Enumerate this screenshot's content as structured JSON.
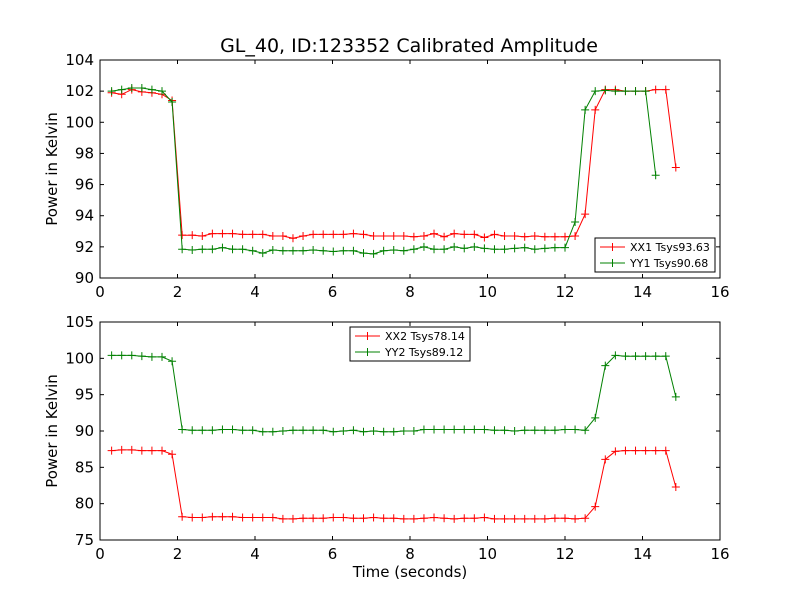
{
  "figure": {
    "title": "GL_40, ID:123352 Calibrated Amplitude"
  },
  "chart_data": [
    {
      "type": "line",
      "title": "GL_40, ID:123352 Calibrated Amplitude",
      "xlabel": "",
      "ylabel": "Power in Kelvin",
      "xlim": [
        0,
        16
      ],
      "ylim": [
        90,
        104
      ],
      "xticks": [
        0,
        2,
        4,
        6,
        8,
        10,
        12,
        14,
        16
      ],
      "yticks": [
        90,
        92,
        94,
        96,
        98,
        100,
        102,
        104
      ],
      "legend": "bottom-right",
      "grid": false,
      "x": [
        0.3,
        0.56,
        0.82,
        1.08,
        1.34,
        1.6,
        1.86,
        2.12,
        2.38,
        2.64,
        2.9,
        3.16,
        3.42,
        3.68,
        3.94,
        4.2,
        4.46,
        4.72,
        4.98,
        5.24,
        5.5,
        5.76,
        6.02,
        6.28,
        6.54,
        6.8,
        7.06,
        7.32,
        7.58,
        7.84,
        8.1,
        8.36,
        8.62,
        8.88,
        9.14,
        9.4,
        9.66,
        9.92,
        10.18,
        10.44,
        10.7,
        10.96,
        11.22,
        11.48,
        11.74,
        12.0,
        12.26,
        12.52,
        12.78,
        13.04,
        13.3,
        13.56,
        13.82,
        14.08,
        14.34,
        14.6,
        14.86
      ],
      "series": [
        {
          "name": "XX1 Tsys93.63",
          "color": "#ff0000",
          "values": [
            101.9,
            101.8,
            102.1,
            101.95,
            101.9,
            101.8,
            101.4,
            92.75,
            92.75,
            92.7,
            92.85,
            92.85,
            92.85,
            92.8,
            92.8,
            92.8,
            92.7,
            92.7,
            92.55,
            92.7,
            92.8,
            92.8,
            92.8,
            92.8,
            92.85,
            92.8,
            92.7,
            92.7,
            92.7,
            92.7,
            92.65,
            92.7,
            92.85,
            92.65,
            92.85,
            92.8,
            92.8,
            92.6,
            92.8,
            92.7,
            92.7,
            92.65,
            92.7,
            92.65,
            92.65,
            92.65,
            92.7,
            94.1,
            100.8,
            102.1,
            102.1,
            102.0,
            102.0,
            102.0,
            102.1,
            102.1,
            97.1
          ]
        },
        {
          "name": "YY1 Tsys90.68",
          "color": "#008000",
          "values": [
            102.0,
            102.1,
            102.2,
            102.2,
            102.1,
            102.0,
            101.3,
            91.85,
            91.8,
            91.85,
            91.85,
            91.95,
            91.85,
            91.85,
            91.75,
            91.6,
            91.8,
            91.75,
            91.75,
            91.75,
            91.8,
            91.75,
            91.7,
            91.75,
            91.75,
            91.6,
            91.55,
            91.75,
            91.8,
            91.75,
            91.85,
            92.0,
            91.85,
            91.85,
            92.0,
            91.9,
            92.0,
            91.9,
            91.85,
            91.85,
            91.9,
            91.95,
            91.85,
            91.9,
            91.95,
            91.95,
            93.6,
            100.8,
            102.0,
            102.05,
            102.0,
            102.0,
            102.0,
            102.0,
            96.6,
            null,
            null
          ]
        }
      ]
    },
    {
      "type": "line",
      "title": "",
      "xlabel": "Time (seconds)",
      "ylabel": "Power in Kelvin",
      "xlim": [
        0,
        16
      ],
      "ylim": [
        75,
        105
      ],
      "xticks": [
        0,
        2,
        4,
        6,
        8,
        10,
        12,
        14,
        16
      ],
      "yticks": [
        75,
        80,
        85,
        90,
        95,
        100,
        105
      ],
      "legend": "top-center",
      "grid": false,
      "x": [
        0.3,
        0.56,
        0.82,
        1.08,
        1.34,
        1.6,
        1.86,
        2.12,
        2.38,
        2.64,
        2.9,
        3.16,
        3.42,
        3.68,
        3.94,
        4.2,
        4.46,
        4.72,
        4.98,
        5.24,
        5.5,
        5.76,
        6.02,
        6.28,
        6.54,
        6.8,
        7.06,
        7.32,
        7.58,
        7.84,
        8.1,
        8.36,
        8.62,
        8.88,
        9.14,
        9.4,
        9.66,
        9.92,
        10.18,
        10.44,
        10.7,
        10.96,
        11.22,
        11.48,
        11.74,
        12.0,
        12.26,
        12.52,
        12.78,
        13.04,
        13.3,
        13.56,
        13.82,
        14.08,
        14.34,
        14.6,
        14.86
      ],
      "series": [
        {
          "name": "XX2 Tsys78.14",
          "color": "#ff0000",
          "values": [
            87.3,
            87.4,
            87.4,
            87.3,
            87.3,
            87.3,
            86.8,
            78.2,
            78.1,
            78.1,
            78.2,
            78.2,
            78.2,
            78.1,
            78.1,
            78.1,
            78.1,
            77.9,
            77.9,
            78.0,
            78.0,
            78.0,
            78.1,
            78.1,
            78.0,
            78.0,
            78.1,
            78.0,
            78.0,
            77.9,
            77.9,
            78.0,
            78.1,
            78.0,
            77.9,
            78.0,
            78.0,
            78.1,
            77.9,
            77.9,
            77.9,
            77.9,
            77.9,
            77.9,
            78.0,
            78.0,
            77.9,
            78.0,
            79.6,
            86.1,
            87.2,
            87.3,
            87.3,
            87.3,
            87.3,
            87.3,
            82.3
          ]
        },
        {
          "name": "YY2 Tsys89.12",
          "color": "#008000",
          "values": [
            100.4,
            100.4,
            100.4,
            100.3,
            100.2,
            100.2,
            99.6,
            90.2,
            90.1,
            90.1,
            90.1,
            90.2,
            90.2,
            90.1,
            90.1,
            89.9,
            89.9,
            90.0,
            90.1,
            90.1,
            90.1,
            90.1,
            89.9,
            90.0,
            90.1,
            89.9,
            90.0,
            89.9,
            89.9,
            90.0,
            90.0,
            90.2,
            90.2,
            90.2,
            90.2,
            90.2,
            90.2,
            90.2,
            90.1,
            90.1,
            90.0,
            90.1,
            90.1,
            90.1,
            90.1,
            90.2,
            90.2,
            90.1,
            91.8,
            99.0,
            100.4,
            100.3,
            100.3,
            100.3,
            100.3,
            100.3,
            94.7
          ]
        }
      ]
    }
  ]
}
